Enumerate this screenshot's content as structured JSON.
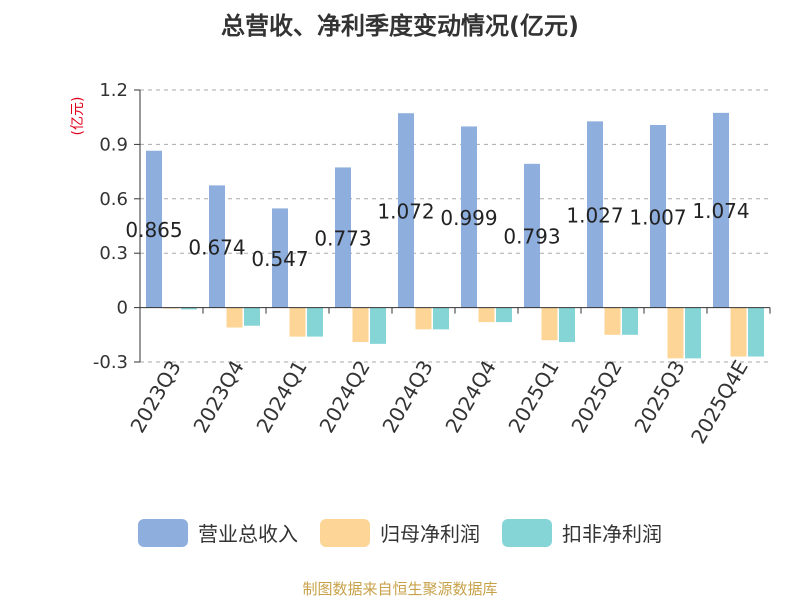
{
  "chart_data": {
    "type": "bar",
    "title": "总营收、净利季度变动情况(亿元)",
    "ylabel": "(亿元)",
    "ylim": [
      -0.3,
      1.2
    ],
    "yticks": [
      -0.3,
      0,
      0.3,
      0.6,
      0.9,
      1.2
    ],
    "ytick_labels": [
      "-0.3",
      "0",
      "0.3",
      "0.6",
      "0.9",
      "1.2"
    ],
    "categories": [
      "2023Q3",
      "2023Q4",
      "2024Q1",
      "2024Q2",
      "2024Q3",
      "2024Q4",
      "2025Q1",
      "2025Q2",
      "2025Q3",
      "2025Q4E"
    ],
    "grid": "horizontal-dashed",
    "legend_position": "bottom",
    "series": [
      {
        "name": "营业总收入",
        "color": "#8eaedd",
        "values": [
          0.865,
          0.674,
          0.547,
          0.773,
          1.072,
          0.999,
          0.793,
          1.027,
          1.007,
          1.074
        ],
        "labels": [
          "0.865",
          "0.674",
          "0.547",
          "0.773",
          "1.072",
          "0.999",
          "0.793",
          "1.027",
          "1.007",
          "1.074"
        ]
      },
      {
        "name": "归母净利润",
        "color": "#fdd596",
        "values": [
          0.0,
          -0.11,
          -0.16,
          -0.19,
          -0.12,
          -0.08,
          -0.18,
          -0.15,
          -0.28,
          -0.27
        ]
      },
      {
        "name": "扣非净利润",
        "color": "#86d5d6",
        "values": [
          -0.01,
          -0.1,
          -0.16,
          -0.2,
          -0.12,
          -0.08,
          -0.19,
          -0.15,
          -0.28,
          -0.27
        ]
      }
    ]
  },
  "source": "制图数据来自恒生聚源数据库"
}
